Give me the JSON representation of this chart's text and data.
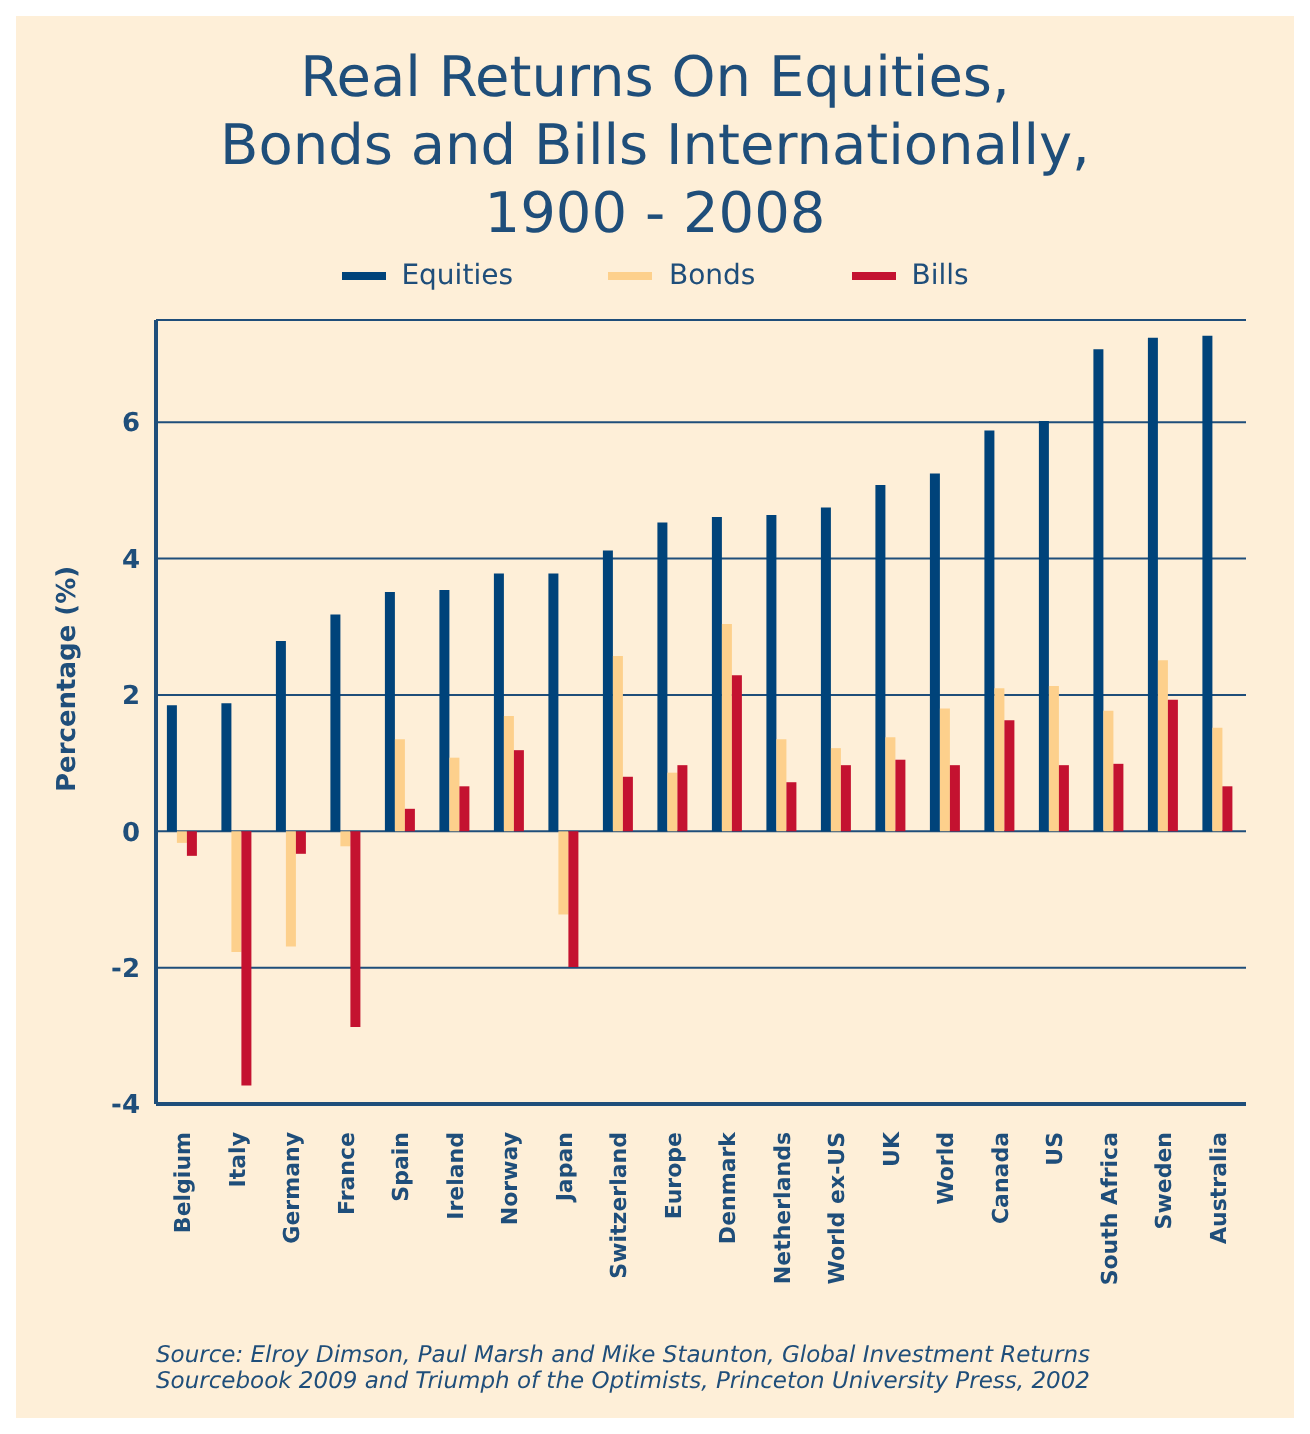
{
  "chart_data": {
    "type": "bar",
    "title": "Real Returns On Equities,\nBonds and Bills Internationally,\n1900 - 2008",
    "ylabel": "Percentage (%)",
    "categories": [
      "Belgium",
      "Italy",
      "Germany",
      "France",
      "Spain",
      "Ireland",
      "Norway",
      "Japan",
      "Switzerland",
      "Europe",
      "Denmark",
      "Netherlands",
      "World ex-US",
      "UK",
      "World",
      "Canada",
      "US",
      "South Africa",
      "Sweden",
      "Australia"
    ],
    "series": [
      {
        "name": "Equities",
        "color": "#00437a",
        "values": [
          1.85,
          1.88,
          2.79,
          3.18,
          3.51,
          3.54,
          3.78,
          3.78,
          4.12,
          4.53,
          4.61,
          4.64,
          4.75,
          5.08,
          5.25,
          5.88,
          6.02,
          7.07,
          7.24,
          7.27
        ]
      },
      {
        "name": "Bonds",
        "color": "#fdd08c",
        "values": [
          -0.17,
          -1.77,
          -1.69,
          -0.22,
          1.35,
          1.08,
          1.69,
          -1.22,
          2.57,
          0.86,
          3.04,
          1.35,
          1.22,
          1.38,
          1.8,
          2.1,
          2.13,
          1.77,
          2.51,
          1.52
        ]
      },
      {
        "name": "Bills",
        "color": "#c41230",
        "values": [
          -0.36,
          -3.73,
          -0.33,
          -2.87,
          0.33,
          0.66,
          1.19,
          -1.99,
          0.8,
          0.97,
          2.29,
          0.72,
          0.97,
          1.05,
          0.97,
          1.63,
          0.97,
          0.99,
          1.93,
          0.66
        ]
      }
    ],
    "ylim": [
      -4,
      7.5
    ],
    "yticks": [
      -4,
      -2,
      0,
      2,
      4,
      6
    ],
    "grid": "y",
    "legend": "top",
    "annotations": [
      "Source: Elroy Dimson, Paul Marsh and Mike Staunton, Global Investment Returns Sourcebook 2009 and Triumph of the Optimists, Princeton University Press, 2002"
    ]
  }
}
